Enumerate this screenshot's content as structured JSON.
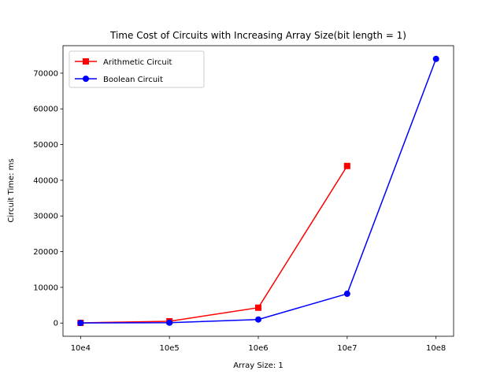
{
  "chart_data": {
    "type": "line",
    "title": "Time Cost of Circuits with Increasing Array Size(bit length = 1)",
    "xlabel": "Array Size: 1",
    "ylabel": "Circuit Time: ms",
    "categories": [
      "10e4",
      "10e5",
      "10e6",
      "10e7",
      "10e8"
    ],
    "ylim": [
      -3700,
      77700
    ],
    "yticks": [
      0,
      10000,
      20000,
      30000,
      40000,
      50000,
      60000,
      70000
    ],
    "ytick_labels": [
      "0",
      "10000",
      "20000",
      "30000",
      "40000",
      "50000",
      "60000",
      "70000"
    ],
    "grid": false,
    "legend_position": "top-left",
    "series": [
      {
        "name": "Arithmetic Circuit",
        "color": "#ff0000",
        "marker": "square",
        "values": [
          50,
          500,
          4300,
          44000,
          null
        ]
      },
      {
        "name": "Boolean Circuit",
        "color": "#0000ff",
        "marker": "circle",
        "values": [
          30,
          100,
          1000,
          8200,
          74000
        ]
      }
    ]
  }
}
